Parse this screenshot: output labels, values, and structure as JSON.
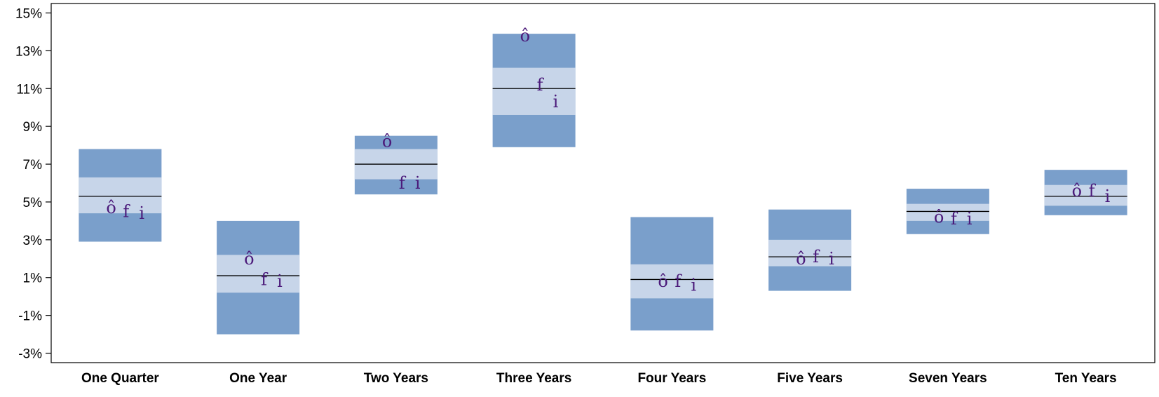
{
  "chart_data": {
    "type": "box",
    "title": "",
    "xlabel": "",
    "ylabel": "",
    "ylim": [
      -3.5,
      15.5
    ],
    "y_ticks": [
      -3,
      -1,
      1,
      3,
      5,
      7,
      9,
      11,
      13,
      15
    ],
    "y_tick_labels": [
      "-3%",
      "-1%",
      "1%",
      "3%",
      "5%",
      "7%",
      "9%",
      "11%",
      "13%",
      "15%"
    ],
    "grid": false,
    "categories": [
      "One Quarter",
      "One Year",
      "Two Years",
      "Three Years",
      "Four Years",
      "Five Years",
      "Seven Years",
      "Ten Years"
    ],
    "ranges": [
      {
        "outer_low": 2.9,
        "inner_low": 4.4,
        "median": 5.3,
        "inner_high": 6.3,
        "outer_high": 7.8
      },
      {
        "outer_low": -2.0,
        "inner_low": 0.2,
        "median": 1.1,
        "inner_high": 2.2,
        "outer_high": 4.0
      },
      {
        "outer_low": 5.4,
        "inner_low": 6.2,
        "median": 7.0,
        "inner_high": 7.8,
        "outer_high": 8.5
      },
      {
        "outer_low": 7.9,
        "inner_low": 9.6,
        "median": 11.0,
        "inner_high": 12.1,
        "outer_high": 13.9
      },
      {
        "outer_low": -1.8,
        "inner_low": -0.1,
        "median": 0.9,
        "inner_high": 1.7,
        "outer_high": 4.2
      },
      {
        "outer_low": 0.3,
        "inner_low": 1.6,
        "median": 2.1,
        "inner_high": 3.0,
        "outer_high": 4.6
      },
      {
        "outer_low": 3.3,
        "inner_low": 4.0,
        "median": 4.5,
        "inner_high": 4.9,
        "outer_high": 5.7
      },
      {
        "outer_low": 4.3,
        "inner_low": 4.8,
        "median": 5.3,
        "inner_high": 5.9,
        "outer_high": 6.7
      }
    ],
    "markers": [
      {
        "label": "ô",
        "values": [
          4.7,
          2.0,
          8.2,
          13.8,
          0.8,
          2.0,
          4.2,
          5.6
        ]
      },
      {
        "label": "f",
        "values": [
          4.5,
          0.9,
          6.0,
          11.2,
          0.8,
          2.1,
          4.1,
          5.6
        ]
      },
      {
        "label": "i",
        "values": [
          4.4,
          0.8,
          6.0,
          10.3,
          0.6,
          2.0,
          4.1,
          5.3
        ]
      }
    ],
    "colors": {
      "outer_band": "#7a9fcb",
      "inner_band": "#c7d5e9",
      "median_line": "#000000",
      "marker_text": "#4b1a7a",
      "axis": "#000000"
    }
  }
}
